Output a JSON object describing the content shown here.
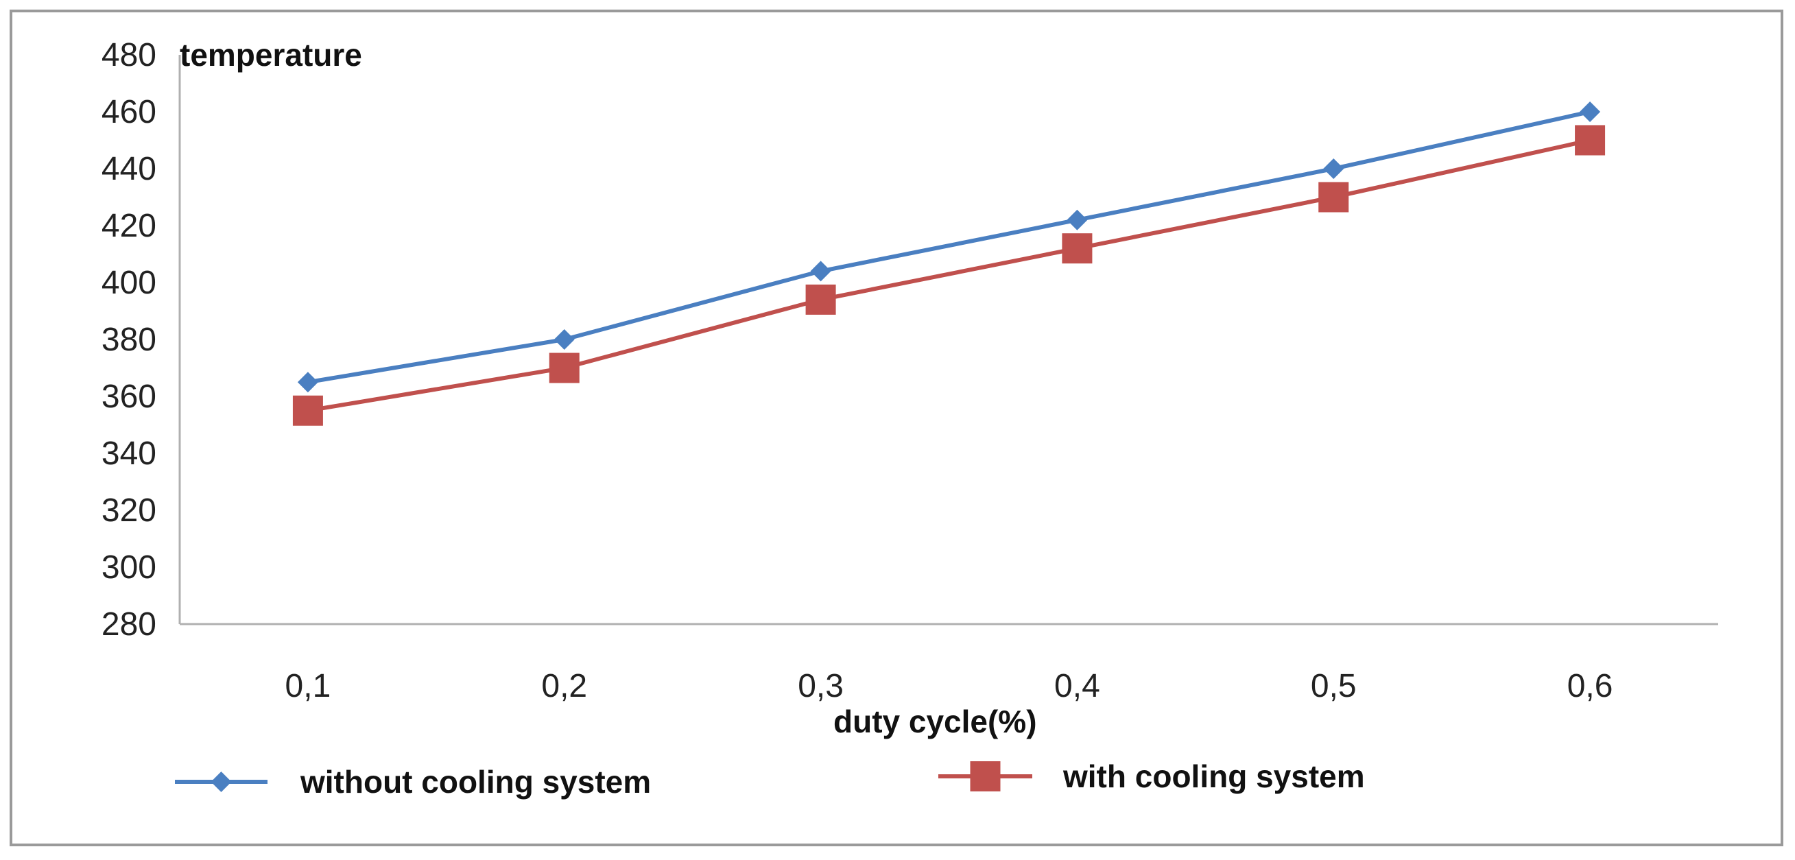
{
  "chart_data": {
    "type": "line",
    "title": "",
    "ylabel": "temperature",
    "xlabel": "duty cycle(%)",
    "categories": [
      "0,1",
      "0,2",
      "0,3",
      "0,4",
      "0,5",
      "0,6"
    ],
    "ylim": [
      280,
      480
    ],
    "yticks": [
      480,
      460,
      440,
      420,
      400,
      380,
      360,
      340,
      320,
      300,
      280
    ],
    "grid": false,
    "legend_position": "bottom",
    "series": [
      {
        "name": "without cooling system",
        "marker": "diamond",
        "color": "#4a7fc1",
        "values": [
          365,
          380,
          404,
          422,
          440,
          460
        ]
      },
      {
        "name": "with cooling system",
        "marker": "square",
        "color": "#c0504d",
        "values": [
          355,
          370,
          394,
          412,
          430,
          450
        ]
      }
    ]
  }
}
